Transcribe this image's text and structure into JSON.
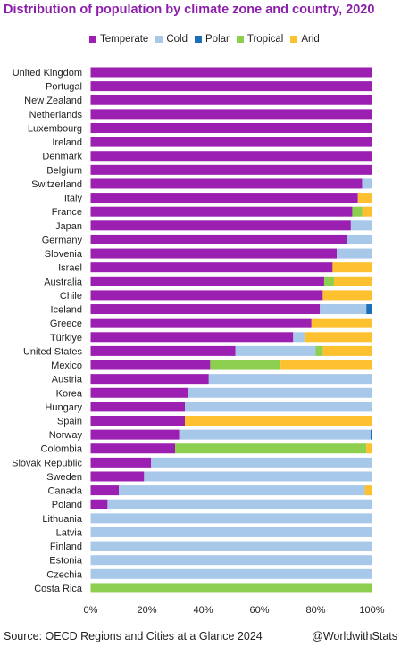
{
  "title": "Distribution of population by climate zone and country, 2020",
  "colors": {
    "Temperate": "#9b1fb0",
    "Cold": "#a8c8ea",
    "Polar": "#1b6fb8",
    "Tropical": "#8dcf4f",
    "Arid": "#fdc02f"
  },
  "footer": {
    "source": "Source: OECD Regions and Cities at a Glance 2024",
    "credit": "@WorldwithStats"
  },
  "chart_data": {
    "type": "bar",
    "orientation": "horizontal",
    "stacked": true,
    "title": "Distribution of population by climate zone and country, 2020",
    "xlim": [
      0,
      100
    ],
    "x_ticks": [
      "0%",
      "20%",
      "40%",
      "60%",
      "80%",
      "100%"
    ],
    "grid": false,
    "legend_position": "top",
    "categories": [
      "United Kingdom",
      "Portugal",
      "New Zealand",
      "Netherlands",
      "Luxembourg",
      "Ireland",
      "Denmark",
      "Belgium",
      "Switzerland",
      "Italy",
      "France",
      "Japan",
      "Germany",
      "Slovenia",
      "Israel",
      "Australia",
      "Chile",
      "Iceland",
      "Greece",
      "Türkiye",
      "United States",
      "Mexico",
      "Austria",
      "Korea",
      "Hungary",
      "Spain",
      "Norway",
      "Colombia",
      "Slovak Republic",
      "Sweden",
      "Canada",
      "Poland",
      "Lithuania",
      "Latvia",
      "Finland",
      "Estonia",
      "Czechia",
      "Costa Rica"
    ],
    "series": [
      {
        "name": "Temperate",
        "values": [
          100,
          100,
          100,
          100,
          100,
          100,
          100,
          100,
          96.5,
          95,
          93,
          92.5,
          91,
          87.5,
          86,
          83,
          82.5,
          81.5,
          78.5,
          72,
          51.5,
          42.5,
          42,
          34.5,
          33.5,
          33.5,
          31.5,
          30,
          21.5,
          19,
          10,
          6,
          0,
          0,
          0,
          0,
          0,
          0
        ]
      },
      {
        "name": "Cold",
        "values": [
          0,
          0,
          0,
          0,
          0,
          0,
          0,
          0,
          3.5,
          0,
          0,
          7.5,
          9,
          12.5,
          0,
          0,
          0,
          16.5,
          0,
          4,
          28.5,
          0,
          58,
          65.5,
          66.5,
          0,
          68,
          0,
          78.5,
          81,
          87.5,
          94,
          100,
          100,
          100,
          100,
          100,
          0
        ]
      },
      {
        "name": "Polar",
        "values": [
          0,
          0,
          0,
          0,
          0,
          0,
          0,
          0,
          0,
          0,
          0,
          0,
          0,
          0,
          0,
          0,
          0,
          2,
          0,
          0,
          0,
          0,
          0,
          0,
          0,
          0,
          0.5,
          0,
          0,
          0,
          0,
          0,
          0,
          0,
          0,
          0,
          0,
          0
        ]
      },
      {
        "name": "Tropical",
        "values": [
          0,
          0,
          0,
          0,
          0,
          0,
          0,
          0,
          0,
          0,
          3.5,
          0,
          0,
          0,
          0,
          3.5,
          0,
          0,
          0,
          0,
          2.5,
          25,
          0,
          0,
          0,
          0,
          0,
          68,
          0,
          0,
          0,
          0,
          0,
          0,
          0,
          0,
          0,
          100
        ]
      },
      {
        "name": "Arid",
        "values": [
          0,
          0,
          0,
          0,
          0,
          0,
          0,
          0,
          0,
          5,
          3.5,
          0,
          0,
          0,
          14,
          13.5,
          17.5,
          0,
          21.5,
          24,
          17.5,
          32.5,
          0,
          0,
          0,
          66.5,
          0,
          2,
          0,
          0,
          2.5,
          0,
          0,
          0,
          0,
          0,
          0,
          0
        ]
      }
    ]
  }
}
